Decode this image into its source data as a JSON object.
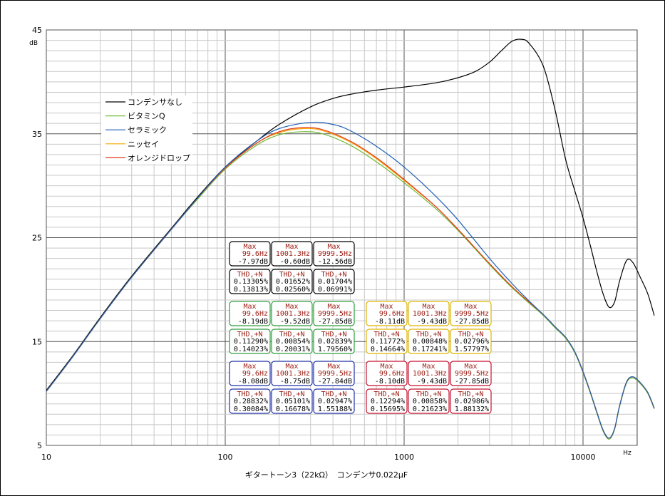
{
  "chart_data": {
    "type": "line",
    "title": "",
    "caption": "ギタートーン3（22kΩ）　コンデンサ0.022μF",
    "xlabel": "",
    "ylabel": "",
    "x_unit": "Hz",
    "y_unit": "dB",
    "xscale": "log",
    "xlim": [
      10,
      30000
    ],
    "ylim": [
      5,
      45
    ],
    "x_ticks": [
      "10",
      "100",
      "1000",
      "10000"
    ],
    "y_ticks": [
      "5",
      "15",
      "25",
      "35",
      "45"
    ],
    "grid": true,
    "legend_position": "left",
    "series": [
      {
        "name": "コンデンサなし",
        "color": "#000000",
        "points": [
          [
            10,
            10.3
          ],
          [
            14,
            13.6
          ],
          [
            20,
            17.3
          ],
          [
            30,
            21.3
          ],
          [
            50,
            25.9
          ],
          [
            70,
            28.9
          ],
          [
            100,
            31.8
          ],
          [
            150,
            34.3
          ],
          [
            200,
            35.9
          ],
          [
            300,
            37.6
          ],
          [
            400,
            38.4
          ],
          [
            500,
            38.8
          ],
          [
            700,
            39.2
          ],
          [
            1000,
            39.5
          ],
          [
            1500,
            39.9
          ],
          [
            2000,
            40.4
          ],
          [
            2500,
            41.0
          ],
          [
            3000,
            41.9
          ],
          [
            3500,
            43.0
          ],
          [
            4000,
            43.9
          ],
          [
            4500,
            44.1
          ],
          [
            5000,
            43.7
          ],
          [
            6000,
            41.5
          ],
          [
            7000,
            37.2
          ],
          [
            8000,
            32.5
          ],
          [
            9000,
            29.5
          ],
          [
            10000,
            26.9
          ],
          [
            11000,
            24.2
          ],
          [
            12000,
            21.6
          ],
          [
            13000,
            19.5
          ],
          [
            14000,
            18.3
          ],
          [
            15000,
            18.8
          ],
          [
            16000,
            20.8
          ],
          [
            17500,
            22.8
          ],
          [
            19000,
            22.6
          ],
          [
            21000,
            21.1
          ],
          [
            23000,
            19.6
          ],
          [
            25000,
            17.5
          ]
        ]
      },
      {
        "name": "ビタミンQ",
        "color": "#70b83a",
        "points": [
          [
            10,
            10.2
          ],
          [
            14,
            13.5
          ],
          [
            20,
            17.2
          ],
          [
            30,
            21.2
          ],
          [
            50,
            25.8
          ],
          [
            70,
            28.7
          ],
          [
            100,
            31.6
          ],
          [
            150,
            33.9
          ],
          [
            200,
            34.9
          ],
          [
            270,
            35.2
          ],
          [
            350,
            35.0
          ],
          [
            500,
            33.9
          ],
          [
            700,
            32.3
          ],
          [
            1000,
            30.3
          ],
          [
            1500,
            27.8
          ],
          [
            2000,
            25.7
          ],
          [
            3000,
            22.4
          ],
          [
            4000,
            20.2
          ],
          [
            5000,
            18.7
          ],
          [
            6000,
            17.5
          ],
          [
            7000,
            16.3
          ],
          [
            8000,
            15.3
          ],
          [
            9000,
            13.9
          ],
          [
            10000,
            12.0
          ],
          [
            11000,
            10.0
          ],
          [
            12000,
            8.0
          ],
          [
            13000,
            6.3
          ],
          [
            14000,
            5.6
          ],
          [
            15000,
            6.5
          ],
          [
            16000,
            8.7
          ],
          [
            17500,
            11.0
          ],
          [
            19000,
            11.5
          ],
          [
            21000,
            10.9
          ],
          [
            23000,
            10.0
          ],
          [
            25000,
            8.5
          ]
        ]
      },
      {
        "name": "セラミック",
        "color": "#1f5fb5",
        "points": [
          [
            10,
            10.2
          ],
          [
            14,
            13.5
          ],
          [
            20,
            17.2
          ],
          [
            30,
            21.2
          ],
          [
            50,
            25.8
          ],
          [
            70,
            28.8
          ],
          [
            100,
            31.8
          ],
          [
            150,
            34.3
          ],
          [
            200,
            35.5
          ],
          [
            300,
            36.1
          ],
          [
            400,
            35.9
          ],
          [
            500,
            35.3
          ],
          [
            700,
            33.8
          ],
          [
            1000,
            31.8
          ],
          [
            1500,
            29.0
          ],
          [
            2000,
            26.7
          ],
          [
            3000,
            23.0
          ],
          [
            4000,
            20.6
          ],
          [
            5000,
            18.9
          ],
          [
            6000,
            17.6
          ],
          [
            7000,
            16.4
          ],
          [
            8000,
            15.4
          ],
          [
            9000,
            14.0
          ],
          [
            10000,
            12.1
          ],
          [
            11000,
            10.1
          ],
          [
            12000,
            8.1
          ],
          [
            13000,
            6.4
          ],
          [
            14000,
            5.7
          ],
          [
            15000,
            6.6
          ],
          [
            16000,
            8.8
          ],
          [
            17500,
            11.1
          ],
          [
            19000,
            11.6
          ],
          [
            21000,
            11.0
          ],
          [
            23000,
            10.1
          ],
          [
            25000,
            8.6
          ]
        ]
      },
      {
        "name": "ニッセイ",
        "color": "#f7a600",
        "points": [
          [
            10,
            10.2
          ],
          [
            14,
            13.5
          ],
          [
            20,
            17.2
          ],
          [
            30,
            21.2
          ],
          [
            50,
            25.8
          ],
          [
            70,
            28.8
          ],
          [
            100,
            31.7
          ],
          [
            150,
            34.1
          ],
          [
            200,
            35.1
          ],
          [
            270,
            35.5
          ],
          [
            350,
            35.3
          ],
          [
            500,
            34.2
          ],
          [
            700,
            32.6
          ],
          [
            1000,
            30.5
          ],
          [
            1500,
            28.0
          ],
          [
            2000,
            25.8
          ],
          [
            3000,
            22.5
          ],
          [
            4000,
            20.3
          ],
          [
            5000,
            18.8
          ],
          [
            6000,
            17.6
          ],
          [
            7000,
            16.4
          ],
          [
            8000,
            15.4
          ],
          [
            9000,
            14.0
          ],
          [
            10000,
            12.1
          ],
          [
            11000,
            10.1
          ],
          [
            12000,
            8.1
          ],
          [
            13000,
            6.4
          ],
          [
            14000,
            5.7
          ],
          [
            15000,
            6.6
          ],
          [
            16000,
            8.8
          ],
          [
            17500,
            11.1
          ],
          [
            19000,
            11.6
          ],
          [
            21000,
            11.0
          ],
          [
            23000,
            10.1
          ],
          [
            25000,
            8.6
          ]
        ]
      },
      {
        "name": "オレンジドロップ",
        "color": "#e03a1a",
        "points": [
          [
            10,
            10.2
          ],
          [
            14,
            13.5
          ],
          [
            20,
            17.2
          ],
          [
            30,
            21.2
          ],
          [
            50,
            25.8
          ],
          [
            70,
            28.8
          ],
          [
            100,
            31.7
          ],
          [
            150,
            34.1
          ],
          [
            200,
            35.2
          ],
          [
            270,
            35.6
          ],
          [
            350,
            35.4
          ],
          [
            500,
            34.3
          ],
          [
            700,
            32.7
          ],
          [
            1000,
            30.6
          ],
          [
            1500,
            28.0
          ],
          [
            2000,
            25.8
          ],
          [
            3000,
            22.5
          ],
          [
            4000,
            20.3
          ],
          [
            5000,
            18.8
          ],
          [
            6000,
            17.6
          ],
          [
            7000,
            16.4
          ],
          [
            8000,
            15.4
          ],
          [
            9000,
            14.0
          ],
          [
            10000,
            12.1
          ],
          [
            11000,
            10.1
          ],
          [
            12000,
            8.1
          ],
          [
            13000,
            6.4
          ],
          [
            14000,
            5.7
          ],
          [
            15000,
            6.6
          ],
          [
            16000,
            8.8
          ],
          [
            17500,
            11.1
          ],
          [
            19000,
            11.6
          ],
          [
            21000,
            11.0
          ],
          [
            23000,
            10.1
          ],
          [
            25000,
            8.6
          ]
        ]
      }
    ]
  },
  "measure_groups": [
    {
      "color": "#000000",
      "max_label": "Max",
      "thd_label": "THD,+N",
      "max": [
        [
          "99.6Hz",
          "-7.97dB"
        ],
        [
          "1001.3Hz",
          "-0.60dB"
        ],
        [
          "9999.5Hz",
          "-12.56dB"
        ]
      ],
      "thd": [
        [
          "0.13305%",
          "0.13813%"
        ],
        [
          "0.01652%",
          "0.02560%"
        ],
        [
          "0.01704%",
          "0.06991%"
        ]
      ]
    },
    {
      "color": "#2e9e3e",
      "max_label": "Max",
      "thd_label": "THD,+N",
      "max": [
        [
          "99.6Hz",
          "-8.19dB"
        ],
        [
          "1001.3Hz",
          "-9.52dB"
        ],
        [
          "9999.5Hz",
          "-27.85dB"
        ]
      ],
      "thd": [
        [
          "0.11290%",
          "0.14023%"
        ],
        [
          "0.00854%",
          "0.20031%"
        ],
        [
          "0.02839%",
          "1.79560%"
        ]
      ]
    },
    {
      "color": "#e0b400",
      "max_label": "Max",
      "thd_label": "THD,+N",
      "max": [
        [
          "99.6Hz",
          "-8.11dB"
        ],
        [
          "1001.3Hz",
          "-9.43dB"
        ],
        [
          "9999.5Hz",
          "-27.85dB"
        ]
      ],
      "thd": [
        [
          "0.11772%",
          "0.14664%"
        ],
        [
          "0.00848%",
          "0.17241%"
        ],
        [
          "0.02796%",
          "1.57797%"
        ]
      ]
    },
    {
      "color": "#2233aa",
      "max_label": "Max",
      "thd_label": "THD,+N",
      "max": [
        [
          "99.6Hz",
          "-8.08dB"
        ],
        [
          "1001.3Hz",
          "-8.75dB"
        ],
        [
          "9999.5Hz",
          "-27.84dB"
        ]
      ],
      "thd": [
        [
          "0.28832%",
          "0.30084%"
        ],
        [
          "0.05101%",
          "0.16678%"
        ],
        [
          "0.02947%",
          "1.55188%"
        ]
      ]
    },
    {
      "color": "#c8102e",
      "max_label": "Max",
      "thd_label": "THD,+N",
      "max": [
        [
          "99.6Hz",
          "-8.10dB"
        ],
        [
          "1001.3Hz",
          "-9.43dB"
        ],
        [
          "9999.5Hz",
          "-27.85dB"
        ]
      ],
      "thd": [
        [
          "0.12294%",
          "0.15695%"
        ],
        [
          "0.00858%",
          "0.21623%"
        ],
        [
          "0.02986%",
          "1.88132%"
        ]
      ]
    }
  ]
}
